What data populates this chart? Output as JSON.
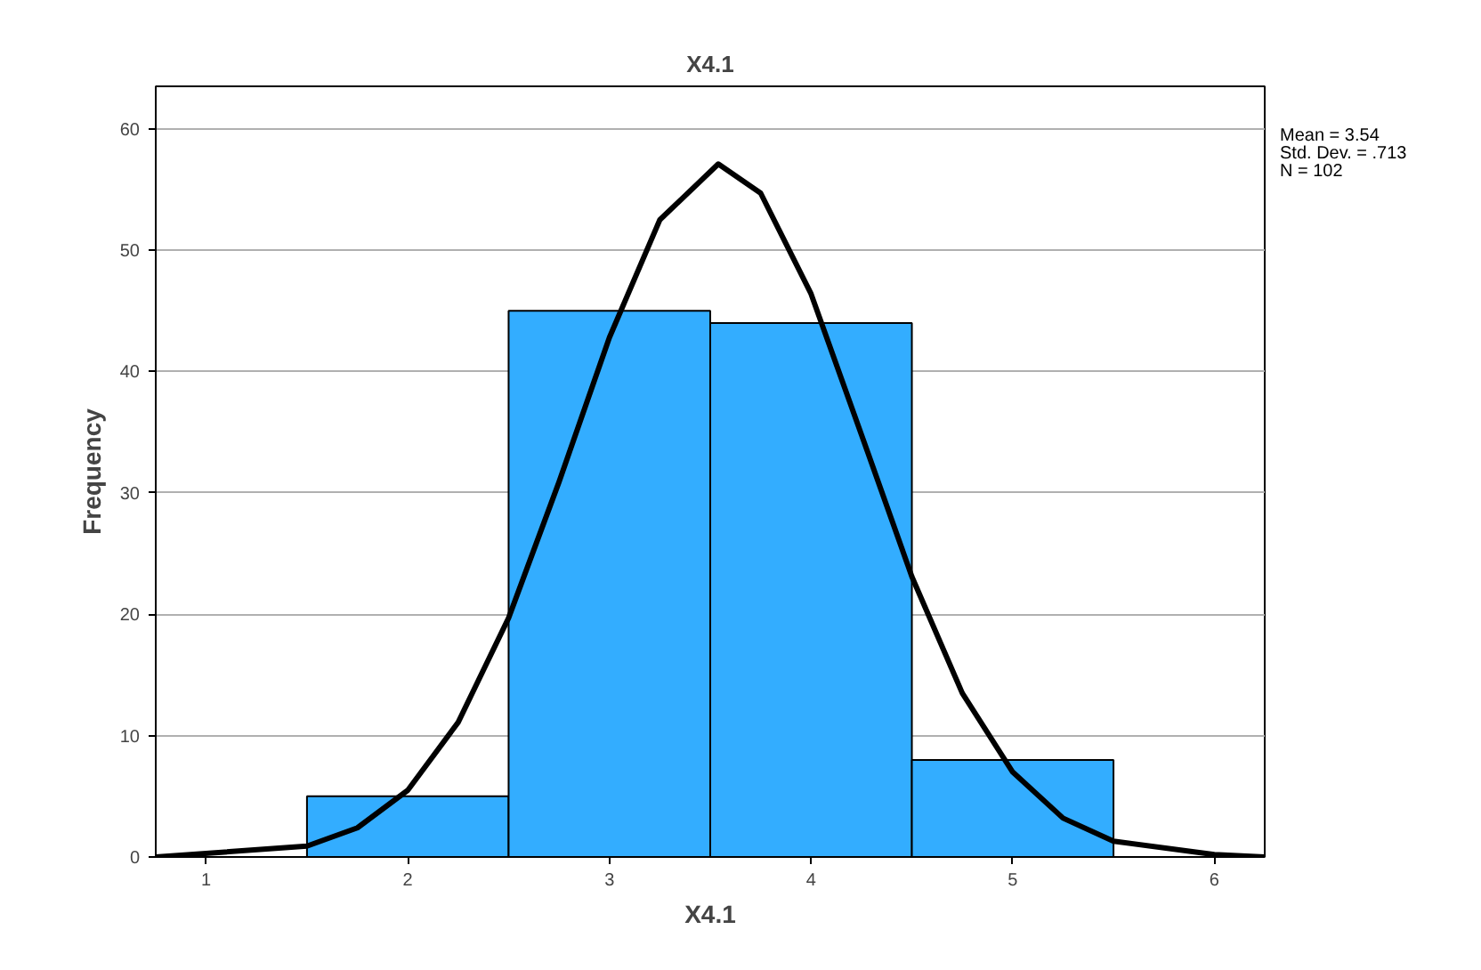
{
  "chart_data": {
    "type": "histogram",
    "title": "X4.1",
    "xlabel": "X4.1",
    "ylabel": "Frequency",
    "bins": [
      1.5,
      2.5,
      3.5,
      4.5,
      5.5
    ],
    "values": [
      5,
      45,
      44,
      8
    ],
    "color": "#33adff",
    "series": [
      {
        "type": "line",
        "color": "#000000",
        "x": [
          0.75,
          1.5,
          1.75,
          2,
          2.25,
          2.5,
          2.75,
          3,
          3.25,
          3.54,
          3.75,
          4,
          4.25,
          4.5,
          4.75,
          5,
          5.25,
          5.5,
          6,
          6.25
        ],
        "values": [
          0.0,
          0.9,
          2.4,
          5.5,
          11.1,
          19.7,
          30.9,
          42.8,
          52.5,
          57.1,
          54.7,
          46.4,
          34.8,
          23.1,
          13.5,
          7.0,
          3.2,
          1.3,
          0.2,
          0.0
        ]
      }
    ],
    "annotations": [
      "Mean = 3.54",
      "Std. Dev. = .713",
      "N = 102"
    ],
    "xlim": [
      0.75,
      6.25
    ],
    "ylim": [
      0,
      63.5
    ],
    "xticks": [
      1,
      2,
      3,
      4,
      5,
      6
    ],
    "yticks": [
      0,
      10,
      20,
      30,
      40,
      50,
      60
    ],
    "grid": "y"
  }
}
